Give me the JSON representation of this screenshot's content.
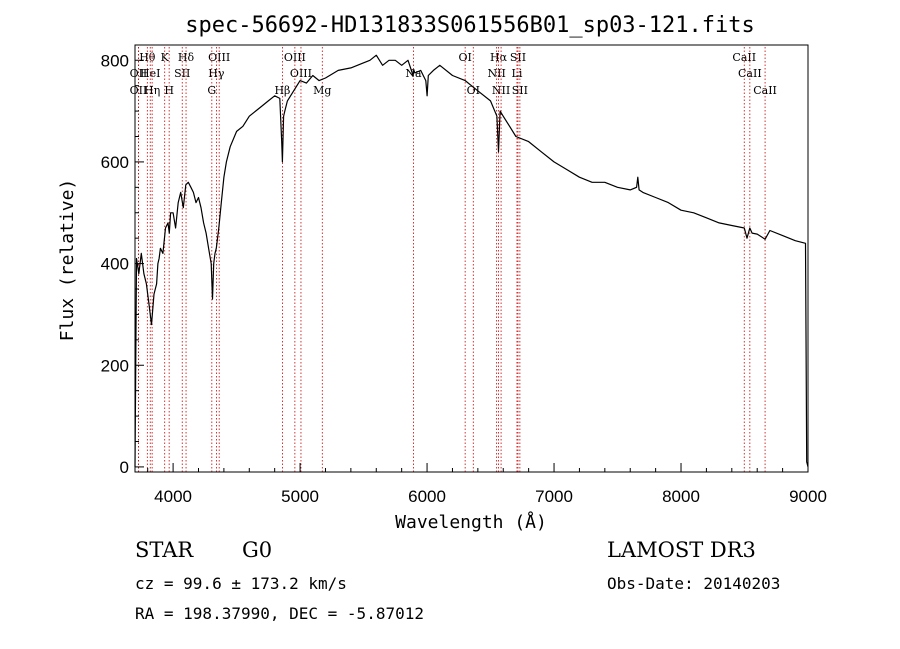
{
  "chart_data": {
    "type": "line",
    "title": "spec-56692-HD131833S061556B01_sp03-121.fits",
    "xlabel": "Wavelength (Å)",
    "ylabel": "Flux (relative)",
    "xlim": [
      3700,
      9000
    ],
    "ylim": [
      -10,
      830
    ],
    "xticks": [
      4000,
      5000,
      6000,
      7000,
      8000,
      9000
    ],
    "yticks": [
      0,
      200,
      400,
      600,
      800
    ],
    "grid": false,
    "series": [
      {
        "name": "spectrum",
        "x": [
          3700,
          3712,
          3730,
          3750,
          3770,
          3790,
          3810,
          3830,
          3850,
          3870,
          3880,
          3890,
          3900,
          3920,
          3940,
          3960,
          3970,
          3980,
          4000,
          4020,
          4040,
          4060,
          4080,
          4100,
          4120,
          4140,
          4160,
          4180,
          4200,
          4220,
          4240,
          4260,
          4280,
          4300,
          4310,
          4320,
          4330,
          4340,
          4360,
          4380,
          4400,
          4420,
          4450,
          4500,
          4550,
          4600,
          4650,
          4700,
          4750,
          4800,
          4840,
          4855,
          4861,
          4870,
          4880,
          4900,
          4950,
          5000,
          5050,
          5100,
          5150,
          5200,
          5300,
          5400,
          5500,
          5550,
          5600,
          5650,
          5700,
          5750,
          5800,
          5850,
          5890,
          5896,
          5905,
          5950,
          5990,
          6000,
          6010,
          6050,
          6100,
          6200,
          6300,
          6400,
          6500,
          6550,
          6563,
          6575,
          6600,
          6650,
          6700,
          6800,
          6900,
          7000,
          7100,
          7200,
          7300,
          7400,
          7500,
          7600,
          7650,
          7660,
          7670,
          7700,
          7800,
          7900,
          8000,
          8100,
          8200,
          8300,
          8400,
          8498,
          8520,
          8542,
          8560,
          8600,
          8662,
          8700,
          8800,
          8900,
          8980,
          8990,
          9000
        ],
        "values": [
          0,
          410,
          380,
          420,
          380,
          360,
          320,
          280,
          340,
          360,
          400,
          410,
          430,
          420,
          470,
          480,
          460,
          500,
          500,
          470,
          520,
          540,
          510,
          555,
          560,
          550,
          540,
          520,
          530,
          510,
          480,
          460,
          430,
          400,
          330,
          400,
          420,
          430,
          470,
          520,
          570,
          600,
          630,
          660,
          670,
          690,
          700,
          710,
          720,
          730,
          725,
          640,
          600,
          690,
          700,
          720,
          740,
          760,
          755,
          770,
          760,
          765,
          780,
          785,
          795,
          800,
          810,
          790,
          800,
          800,
          790,
          800,
          770,
          780,
          775,
          780,
          760,
          730,
          770,
          780,
          790,
          770,
          760,
          740,
          720,
          690,
          620,
          700,
          690,
          670,
          650,
          640,
          620,
          600,
          585,
          570,
          560,
          560,
          550,
          545,
          550,
          570,
          545,
          540,
          530,
          520,
          505,
          500,
          490,
          480,
          475,
          470,
          450,
          470,
          460,
          458,
          448,
          465,
          455,
          445,
          440,
          10,
          0
        ]
      }
    ],
    "line_markers": [
      {
        "label": "Hθ",
        "x": 3797,
        "row": 1
      },
      {
        "label": "OII",
        "x": 3727,
        "row": 2
      },
      {
        "label": "OII",
        "x": 3727,
        "row": 3
      },
      {
        "label": "HeI",
        "x": 3820,
        "row": 2
      },
      {
        "label": "Hη",
        "x": 3835,
        "row": 3
      },
      {
        "label": "K",
        "x": 3934,
        "row": 1
      },
      {
        "label": "H",
        "x": 3969,
        "row": 3
      },
      {
        "label": "Hδ",
        "x": 4102,
        "row": 1
      },
      {
        "label": "SII",
        "x": 4072,
        "row": 2
      },
      {
        "label": "OIII",
        "x": 4363,
        "row": 1
      },
      {
        "label": "Hγ",
        "x": 4341,
        "row": 2
      },
      {
        "label": "G",
        "x": 4305,
        "row": 3
      },
      {
        "label": "Hβ",
        "x": 4861,
        "row": 3
      },
      {
        "label": "OIII",
        "x": 4959,
        "row": 1
      },
      {
        "label": "OIII",
        "x": 5007,
        "row": 2
      },
      {
        "label": "Mg",
        "x": 5175,
        "row": 3
      },
      {
        "label": "Na",
        "x": 5893,
        "row": 2
      },
      {
        "label": "OI",
        "x": 6300,
        "row": 1
      },
      {
        "label": "OI",
        "x": 6364,
        "row": 3
      },
      {
        "label": "Hα",
        "x": 6563,
        "row": 1
      },
      {
        "label": "NII",
        "x": 6548,
        "row": 2
      },
      {
        "label": "NII",
        "x": 6583,
        "row": 3
      },
      {
        "label": "SII",
        "x": 6716,
        "row": 1
      },
      {
        "label": "Li",
        "x": 6708,
        "row": 2
      },
      {
        "label": "SII",
        "x": 6731,
        "row": 3
      },
      {
        "label": "CaII",
        "x": 8498,
        "row": 1
      },
      {
        "label": "CaII",
        "x": 8542,
        "row": 2
      },
      {
        "label": "CaII",
        "x": 8662,
        "row": 3
      }
    ],
    "marker_color": "#cc0000"
  },
  "info": {
    "object_class": "STAR",
    "subclass": "G0",
    "survey": "LAMOST DR3",
    "cz": "cz = 99.6 ± 173.2 km/s",
    "obs_date": "Obs-Date: 20140203",
    "coords": "RA = 198.37990, DEC =  -5.87012"
  }
}
